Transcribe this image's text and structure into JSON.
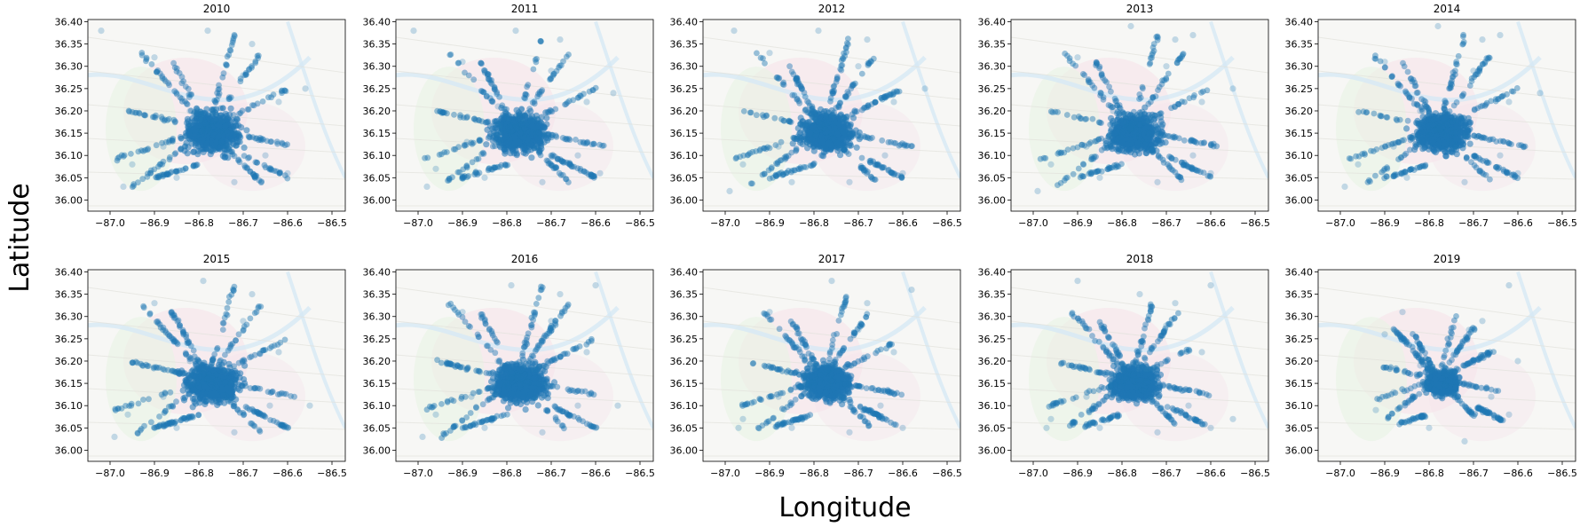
{
  "figure": {
    "xlabel": "Longitude",
    "ylabel": "Latitude"
  },
  "colors": {
    "point": "#1f77b4",
    "axes": "#000000",
    "map_background": "#f7f7f5",
    "map_roads": "#e2e2dc",
    "map_water": "#d6e9f5",
    "map_region_a": "#e8f3e4",
    "map_region_b": "#f6e3ea",
    "map_label": "#c7b8c6"
  },
  "chart_data": [
    {
      "type": "scatter",
      "title": "2010",
      "xlim": [
        -87.05,
        -86.47
      ],
      "ylim": [
        35.975,
        36.405
      ],
      "xticks": [
        -87.0,
        -86.9,
        -86.8,
        -86.7,
        -86.6,
        -86.5
      ],
      "yticks": [
        36.0,
        36.05,
        36.1,
        36.15,
        36.2,
        36.25,
        36.3,
        36.35,
        36.4
      ],
      "point_alpha": 0.2,
      "grid": false,
      "background": "map",
      "x": [
        -86.95,
        -86.88,
        -86.82,
        -86.76,
        -86.7,
        -86.65,
        -86.6,
        -86.97,
        -86.9,
        -86.78,
        -86.72,
        -86.62,
        -87.02,
        -86.56,
        -86.68,
        -86.85,
        -86.77
      ],
      "y": [
        36.08,
        36.12,
        36.2,
        36.17,
        36.28,
        36.1,
        36.06,
        36.03,
        36.32,
        36.38,
        36.04,
        36.22,
        36.38,
        36.25,
        36.35,
        36.05,
        36.14
      ]
    },
    {
      "type": "scatter",
      "title": "2011",
      "xlim": [
        -87.05,
        -86.47
      ],
      "ylim": [
        35.975,
        36.405
      ],
      "xticks": [
        -87.0,
        -86.9,
        -86.8,
        -86.7,
        -86.6,
        -86.5
      ],
      "yticks": [
        36.0,
        36.05,
        36.1,
        36.15,
        36.2,
        36.25,
        36.3,
        36.35,
        36.4
      ],
      "point_alpha": 0.2,
      "grid": false,
      "background": "map",
      "x": [
        -86.96,
        -86.89,
        -86.82,
        -86.76,
        -86.7,
        -86.64,
        -86.59,
        -86.98,
        -86.9,
        -86.78,
        -86.72,
        -86.62,
        -87.01,
        -86.56,
        -86.68,
        -86.85,
        -86.77
      ],
      "y": [
        36.07,
        36.13,
        36.21,
        36.16,
        36.29,
        36.1,
        36.06,
        36.03,
        36.31,
        36.38,
        36.04,
        36.22,
        36.38,
        36.24,
        36.36,
        36.05,
        36.15
      ]
    },
    {
      "type": "scatter",
      "title": "2012",
      "xlim": [
        -87.05,
        -86.47
      ],
      "ylim": [
        35.975,
        36.405
      ],
      "xticks": [
        -87.0,
        -86.9,
        -86.8,
        -86.7,
        -86.6,
        -86.5
      ],
      "yticks": [
        36.0,
        36.05,
        36.1,
        36.15,
        36.2,
        36.25,
        36.3,
        36.35,
        36.4
      ],
      "point_alpha": 0.2,
      "grid": false,
      "background": "map",
      "x": [
        -86.96,
        -86.88,
        -86.82,
        -86.76,
        -86.7,
        -86.64,
        -86.6,
        -86.99,
        -86.9,
        -86.79,
        -86.72,
        -86.62,
        -86.98,
        -86.55,
        -86.68,
        -86.85,
        -86.77
      ],
      "y": [
        36.08,
        36.12,
        36.2,
        36.17,
        36.3,
        36.1,
        36.06,
        36.02,
        36.33,
        36.38,
        36.04,
        36.22,
        36.38,
        36.25,
        36.36,
        36.04,
        36.14
      ]
    },
    {
      "type": "scatter",
      "title": "2013",
      "xlim": [
        -87.05,
        -86.47
      ],
      "ylim": [
        35.975,
        36.405
      ],
      "xticks": [
        -87.0,
        -86.9,
        -86.8,
        -86.7,
        -86.6,
        -86.5
      ],
      "yticks": [
        36.0,
        36.05,
        36.1,
        36.15,
        36.2,
        36.25,
        36.3,
        36.35,
        36.4
      ],
      "point_alpha": 0.2,
      "grid": false,
      "background": "map",
      "x": [
        -86.96,
        -86.88,
        -86.82,
        -86.76,
        -86.7,
        -86.64,
        -86.6,
        -86.99,
        -86.9,
        -86.78,
        -86.72,
        -86.62,
        -86.64,
        -86.55,
        -86.68,
        -86.85,
        -86.77
      ],
      "y": [
        36.08,
        36.12,
        36.2,
        36.17,
        36.3,
        36.1,
        36.06,
        36.02,
        36.32,
        36.39,
        36.04,
        36.22,
        36.37,
        36.25,
        36.36,
        36.05,
        36.14
      ]
    },
    {
      "type": "scatter",
      "title": "2014",
      "xlim": [
        -87.05,
        -86.47
      ],
      "ylim": [
        35.975,
        36.405
      ],
      "xticks": [
        -87.0,
        -86.9,
        -86.8,
        -86.7,
        -86.6,
        -86.5
      ],
      "yticks": [
        36.0,
        36.05,
        36.1,
        36.15,
        36.2,
        36.25,
        36.3,
        36.35,
        36.4
      ],
      "point_alpha": 0.2,
      "grid": false,
      "background": "map",
      "x": [
        -86.96,
        -86.88,
        -86.82,
        -86.76,
        -86.7,
        -86.64,
        -86.6,
        -86.99,
        -86.9,
        -86.78,
        -86.72,
        -86.62,
        -86.64,
        -86.55,
        -86.68,
        -86.85,
        -86.77
      ],
      "y": [
        36.08,
        36.12,
        36.2,
        36.17,
        36.29,
        36.1,
        36.06,
        36.03,
        36.31,
        36.39,
        36.04,
        36.22,
        36.37,
        36.24,
        36.36,
        36.05,
        36.14
      ]
    },
    {
      "type": "scatter",
      "title": "2015",
      "xlim": [
        -87.05,
        -86.47
      ],
      "ylim": [
        35.975,
        36.405
      ],
      "xticks": [
        -87.0,
        -86.9,
        -86.8,
        -86.7,
        -86.6,
        -86.5
      ],
      "yticks": [
        36.0,
        36.05,
        36.1,
        36.15,
        36.2,
        36.25,
        36.3,
        36.35,
        36.4
      ],
      "point_alpha": 0.2,
      "grid": false,
      "background": "map",
      "x": [
        -86.96,
        -86.88,
        -86.82,
        -86.76,
        -86.7,
        -86.64,
        -86.6,
        -86.99,
        -86.9,
        -86.79,
        -86.72,
        -86.62,
        -86.55,
        -86.68,
        -86.85,
        -86.77
      ],
      "y": [
        36.08,
        36.12,
        36.2,
        36.17,
        36.29,
        36.1,
        36.05,
        36.03,
        36.33,
        36.38,
        36.04,
        36.22,
        36.1,
        36.35,
        36.05,
        36.14
      ]
    },
    {
      "type": "scatter",
      "title": "2016",
      "xlim": [
        -87.05,
        -86.47
      ],
      "ylim": [
        35.975,
        36.405
      ],
      "xticks": [
        -87.0,
        -86.9,
        -86.8,
        -86.7,
        -86.6,
        -86.5
      ],
      "yticks": [
        36.0,
        36.05,
        36.1,
        36.15,
        36.2,
        36.25,
        36.3,
        36.35,
        36.4
      ],
      "point_alpha": 0.2,
      "grid": false,
      "background": "map",
      "x": [
        -86.96,
        -86.88,
        -86.82,
        -86.76,
        -86.7,
        -86.64,
        -86.6,
        -86.99,
        -86.9,
        -86.79,
        -86.72,
        -86.62,
        -86.6,
        -86.55,
        -86.68,
        -86.85,
        -86.77
      ],
      "y": [
        36.08,
        36.12,
        36.2,
        36.17,
        36.29,
        36.1,
        36.05,
        36.03,
        36.31,
        36.37,
        36.04,
        36.22,
        36.37,
        36.1,
        36.35,
        36.05,
        36.14
      ]
    },
    {
      "type": "scatter",
      "title": "2017",
      "xlim": [
        -87.05,
        -86.47
      ],
      "ylim": [
        35.975,
        36.405
      ],
      "xticks": [
        -87.0,
        -86.9,
        -86.8,
        -86.7,
        -86.6,
        -86.5
      ],
      "yticks": [
        36.0,
        36.05,
        36.1,
        36.15,
        36.2,
        36.25,
        36.3,
        36.35,
        36.4
      ],
      "point_alpha": 0.2,
      "grid": false,
      "background": "map",
      "x": [
        -86.96,
        -86.88,
        -86.82,
        -86.76,
        -86.7,
        -86.65,
        -86.6,
        -86.97,
        -86.9,
        -86.76,
        -86.72,
        -86.62,
        -86.58,
        -86.68,
        -86.85,
        -86.77
      ],
      "y": [
        36.07,
        36.12,
        36.2,
        36.17,
        36.27,
        36.1,
        36.05,
        36.05,
        36.31,
        36.38,
        36.04,
        36.22,
        36.36,
        36.33,
        36.05,
        36.14
      ]
    },
    {
      "type": "scatter",
      "title": "2018",
      "xlim": [
        -87.05,
        -86.47
      ],
      "ylim": [
        35.975,
        36.405
      ],
      "xticks": [
        -87.0,
        -86.9,
        -86.8,
        -86.7,
        -86.6,
        -86.5
      ],
      "yticks": [
        36.0,
        36.05,
        36.1,
        36.15,
        36.2,
        36.25,
        36.3,
        36.35,
        36.4
      ],
      "point_alpha": 0.2,
      "grid": false,
      "background": "map",
      "x": [
        -86.96,
        -86.88,
        -86.82,
        -86.76,
        -86.7,
        -86.65,
        -86.6,
        -86.97,
        -86.9,
        -86.76,
        -86.72,
        -86.62,
        -86.6,
        -86.55,
        -86.68,
        -86.85,
        -86.77
      ],
      "y": [
        36.07,
        36.12,
        36.2,
        36.17,
        36.28,
        36.1,
        36.05,
        36.05,
        36.38,
        36.35,
        36.04,
        36.22,
        36.37,
        36.07,
        36.33,
        36.05,
        36.14
      ]
    },
    {
      "type": "scatter",
      "title": "2019",
      "xlim": [
        -87.05,
        -86.47
      ],
      "ylim": [
        35.975,
        36.405
      ],
      "xticks": [
        -87.0,
        -86.9,
        -86.8,
        -86.7,
        -86.6,
        -86.5
      ],
      "yticks": [
        36.0,
        36.05,
        36.1,
        36.15,
        36.2,
        36.25,
        36.3,
        36.35,
        36.4
      ],
      "point_alpha": 0.2,
      "grid": false,
      "background": "map",
      "x": [
        -86.92,
        -86.88,
        -86.82,
        -86.77,
        -86.71,
        -86.66,
        -86.62,
        -86.9,
        -86.86,
        -86.72,
        -86.62,
        -86.6,
        -86.68,
        -86.8,
        -86.74
      ],
      "y": [
        36.09,
        36.13,
        36.19,
        36.16,
        36.27,
        36.12,
        36.08,
        36.26,
        36.31,
        36.02,
        36.37,
        36.2,
        36.29,
        36.05,
        36.14
      ]
    }
  ]
}
